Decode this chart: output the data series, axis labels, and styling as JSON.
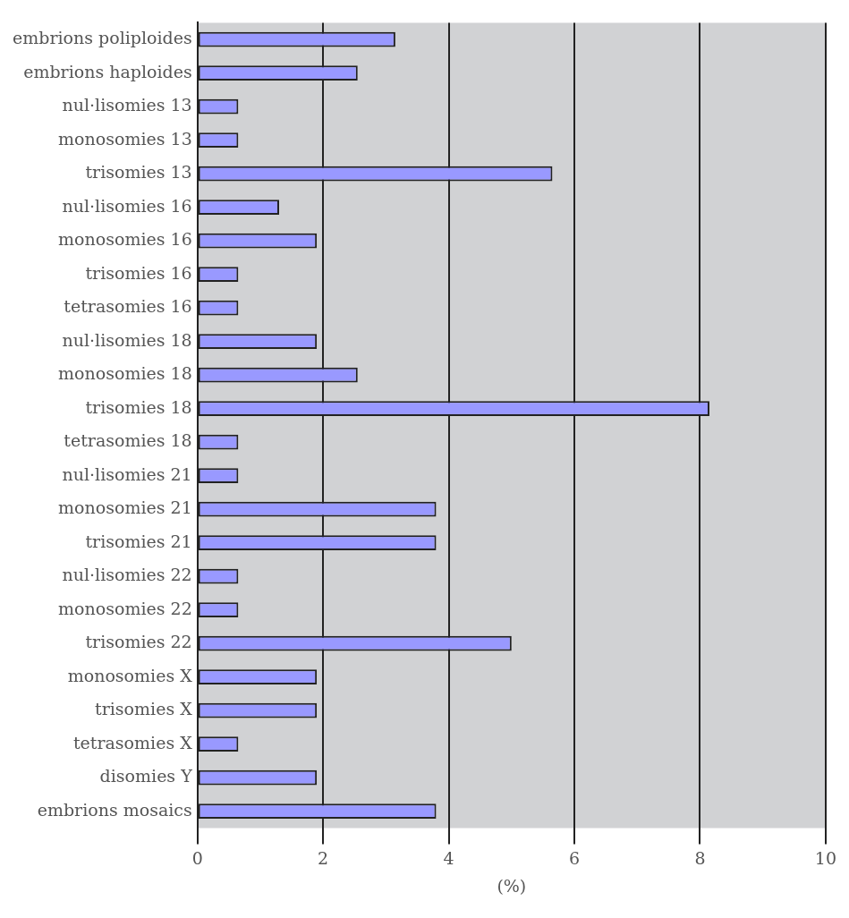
{
  "chart_data": {
    "type": "bar",
    "orientation": "horizontal",
    "xlabel": "(%)",
    "categories": [
      "embrions poliploides",
      "embrions haploides",
      "nul·lisomies 13",
      "monosomies 13",
      "trisomies 13",
      "nul·lisomies 16",
      "monosomies 16",
      "trisomies 16",
      "tetrasomies 16",
      "nul·lisomies 18",
      "monosomies 18",
      "trisomies 18",
      "tetrasomies 18",
      "nul·lisomies 21",
      "monosomies 21",
      "trisomies 21",
      "nul·lisomies 22",
      "monosomies 22",
      "trisomies 22",
      "monosomies X",
      "trisomies X",
      "tetrasomies X",
      "disomies Y",
      "embrions mosaics"
    ],
    "values": [
      3.15,
      2.55,
      0.65,
      0.65,
      5.65,
      1.3,
      1.9,
      0.65,
      0.65,
      1.9,
      2.55,
      8.15,
      0.65,
      0.65,
      3.8,
      3.8,
      0.65,
      0.65,
      5.0,
      1.9,
      1.9,
      0.65,
      1.9,
      3.8
    ],
    "color": "#9999ff",
    "xlim": [
      0,
      10
    ],
    "xticks": [
      0,
      2,
      4,
      6,
      8,
      10
    ],
    "grid": "x",
    "legend": false
  }
}
